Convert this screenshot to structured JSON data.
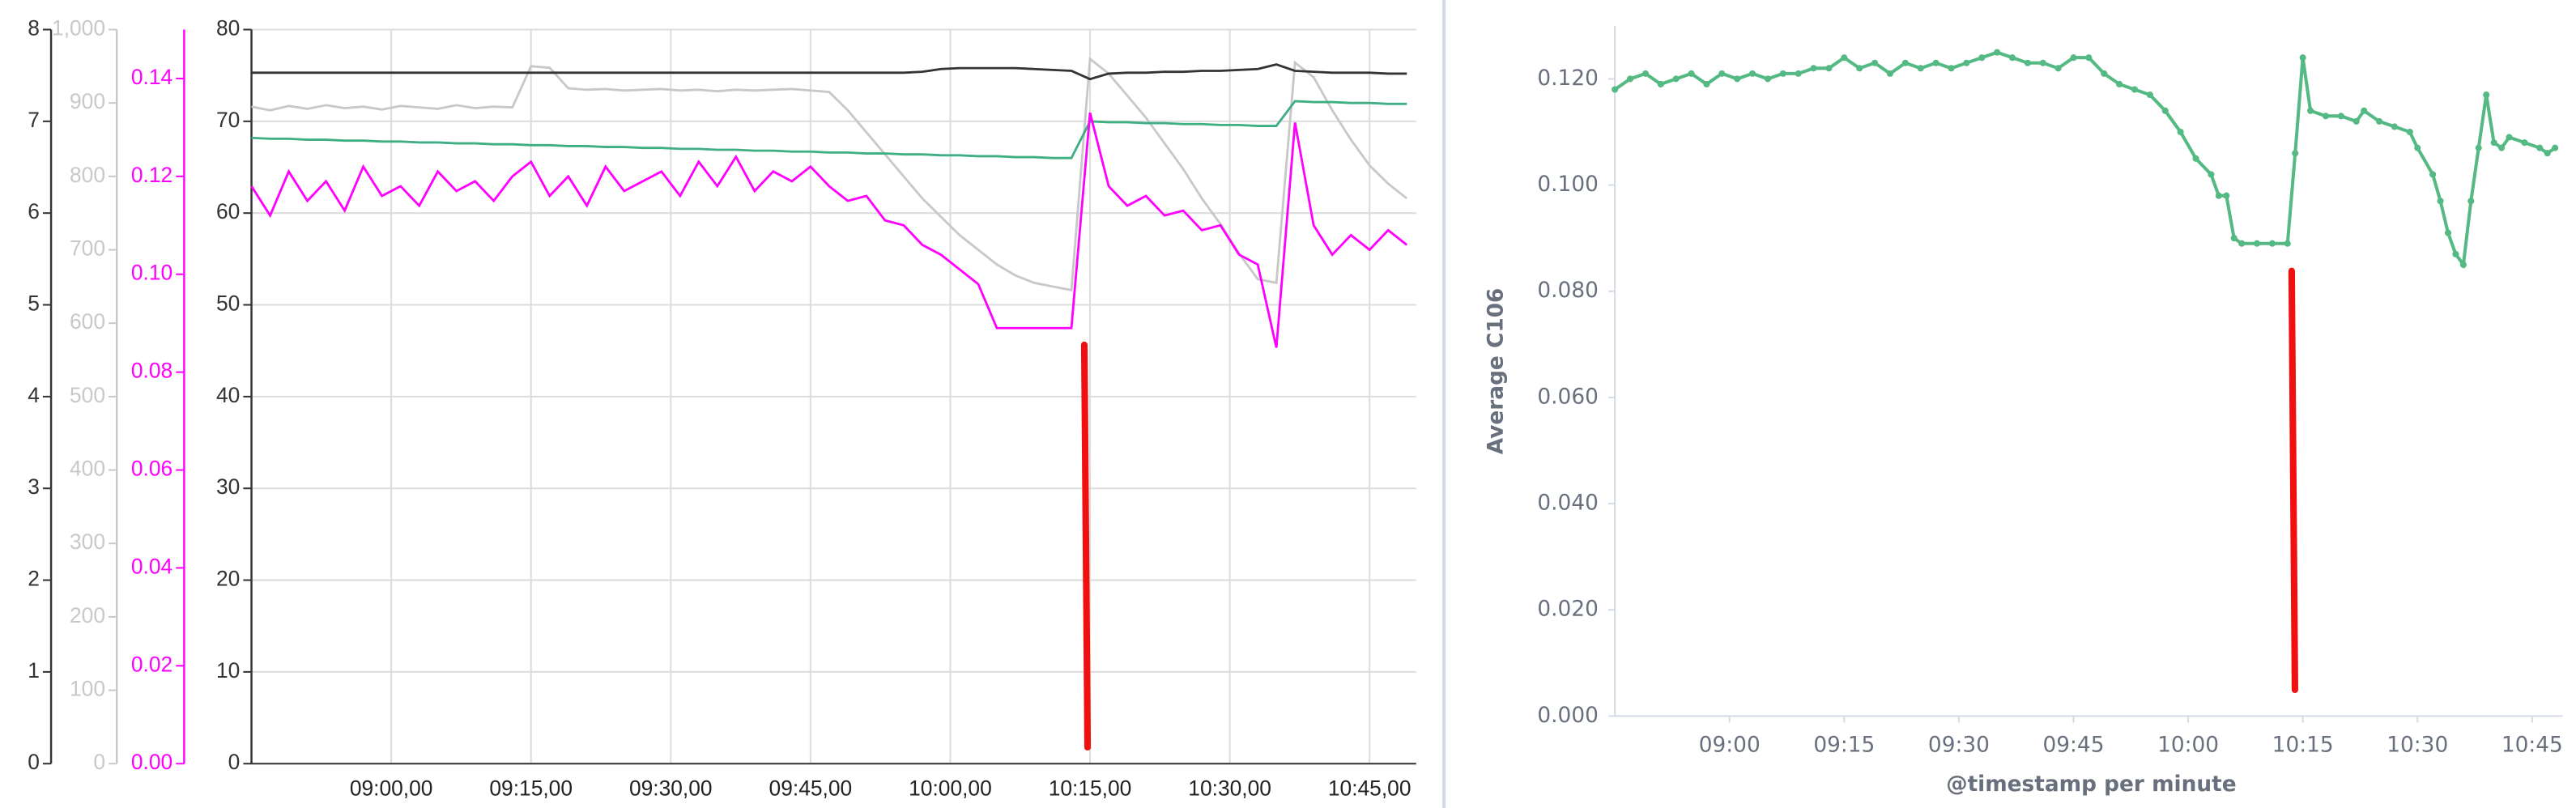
{
  "chart_data": [
    {
      "type": "line",
      "x": [
        "08:45",
        "08:47",
        "08:49",
        "08:51",
        "08:53",
        "08:55",
        "08:57",
        "08:59",
        "09:01",
        "09:03",
        "09:05",
        "09:07",
        "09:09",
        "09:11",
        "09:13",
        "09:15",
        "09:17",
        "09:19",
        "09:21",
        "09:23",
        "09:25",
        "09:27",
        "09:29",
        "09:31",
        "09:33",
        "09:35",
        "09:37",
        "09:39",
        "09:41",
        "09:43",
        "09:45",
        "09:47",
        "09:49",
        "09:51",
        "09:53",
        "09:55",
        "09:57",
        "09:59",
        "10:01",
        "10:03",
        "10:05",
        "10:07",
        "10:09",
        "10:11",
        "10:13",
        "10:15",
        "10:17",
        "10:19",
        "10:21",
        "10:23",
        "10:25",
        "10:27",
        "10:29",
        "10:31",
        "10:33",
        "10:35",
        "10:37",
        "10:39",
        "10:41",
        "10:43",
        "10:45",
        "10:47",
        "10:49"
      ],
      "xlim": [
        "08:45",
        "10:50"
      ],
      "xticks": [
        {
          "value": "09:00",
          "label": "09:00,00"
        },
        {
          "value": "09:15",
          "label": "09:15,00"
        },
        {
          "value": "09:30",
          "label": "09:30,00"
        },
        {
          "value": "09:45",
          "label": "09:45,00"
        },
        {
          "value": "10:00",
          "label": "10:00,00"
        },
        {
          "value": "10:15",
          "label": "10:15,00"
        },
        {
          "value": "10:30",
          "label": "10:30,00"
        },
        {
          "value": "10:45",
          "label": "10:45,00"
        }
      ],
      "grid": true,
      "yaxes": [
        {
          "ylim": [
            0,
            8
          ],
          "yticks": [
            0,
            1,
            2,
            3,
            4,
            5,
            6,
            7,
            8
          ],
          "color": "#333333"
        },
        {
          "ylim": [
            0,
            1000
          ],
          "yticks": [
            0,
            100,
            200,
            300,
            400,
            500,
            600,
            700,
            800,
            900,
            {
              "value": 1000,
              "label": "1,000"
            }
          ],
          "color": "#c8c8c8"
        },
        {
          "ylim": [
            0,
            0.15
          ],
          "yticks": [
            {
              "value": 0,
              "label": "0.00"
            },
            0.02,
            0.04,
            0.06,
            0.08,
            {
              "value": 0.1,
              "label": "0.10"
            },
            0.12,
            0.14
          ],
          "color": "#ff00ff"
        },
        {
          "ylim": [
            0,
            80
          ],
          "yticks": [
            0,
            10,
            20,
            30,
            40,
            50,
            60,
            70,
            80
          ],
          "color": "#333333",
          "grid": true
        }
      ],
      "series": [
        {
          "color": "#c8c8c8",
          "axis": 1,
          "values": [
            895,
            890,
            896,
            892,
            897,
            893,
            895,
            891,
            896,
            894,
            892,
            897,
            893,
            895,
            894,
            950,
            948,
            920,
            918,
            919,
            917,
            918,
            919,
            917,
            918,
            916,
            918,
            917,
            918,
            919,
            917,
            915,
            890,
            860,
            830,
            800,
            770,
            745,
            720,
            700,
            680,
            665,
            655,
            650,
            645,
            960,
            940,
            910,
            880,
            845,
            810,
            770,
            735,
            695,
            660,
            655,
            955,
            935,
            890,
            850,
            815,
            790,
            770
          ]
        },
        {
          "color": "#333333",
          "axis": 0,
          "values": [
            7.53,
            7.53,
            7.53,
            7.53,
            7.53,
            7.53,
            7.53,
            7.53,
            7.53,
            7.53,
            7.53,
            7.53,
            7.53,
            7.53,
            7.53,
            7.53,
            7.53,
            7.53,
            7.53,
            7.53,
            7.53,
            7.53,
            7.53,
            7.53,
            7.53,
            7.53,
            7.53,
            7.53,
            7.53,
            7.53,
            7.53,
            7.53,
            7.53,
            7.53,
            7.53,
            7.53,
            7.54,
            7.57,
            7.58,
            7.58,
            7.58,
            7.58,
            7.57,
            7.56,
            7.55,
            7.46,
            7.52,
            7.53,
            7.53,
            7.54,
            7.54,
            7.55,
            7.55,
            7.56,
            7.57,
            7.62,
            7.55,
            7.54,
            7.53,
            7.53,
            7.53,
            7.52,
            7.52
          ]
        },
        {
          "color": "#3fae82",
          "axis": 3,
          "values": [
            68.2,
            68.1,
            68.1,
            68.0,
            68.0,
            67.9,
            67.9,
            67.8,
            67.8,
            67.7,
            67.7,
            67.6,
            67.6,
            67.5,
            67.5,
            67.4,
            67.4,
            67.3,
            67.3,
            67.2,
            67.2,
            67.1,
            67.1,
            67.0,
            67.0,
            66.9,
            66.9,
            66.8,
            66.8,
            66.7,
            66.7,
            66.6,
            66.6,
            66.5,
            66.5,
            66.4,
            66.4,
            66.3,
            66.3,
            66.2,
            66.2,
            66.1,
            66.1,
            66.0,
            66.0,
            70.0,
            69.9,
            69.9,
            69.8,
            69.8,
            69.7,
            69.7,
            69.6,
            69.6,
            69.5,
            69.5,
            72.2,
            72.1,
            72.1,
            72.0,
            72.0,
            71.9,
            71.9
          ]
        },
        {
          "color": "#ff00ff",
          "axis": 2,
          "values": [
            0.118,
            0.112,
            0.121,
            0.115,
            0.119,
            0.113,
            0.122,
            0.116,
            0.118,
            0.114,
            0.121,
            0.117,
            0.119,
            0.115,
            0.12,
            0.123,
            0.116,
            0.12,
            0.114,
            0.122,
            0.117,
            0.119,
            0.121,
            0.116,
            0.123,
            0.118,
            0.124,
            0.117,
            0.121,
            0.119,
            0.122,
            0.118,
            0.115,
            0.116,
            0.111,
            0.11,
            0.106,
            0.104,
            0.101,
            0.098,
            0.089,
            0.089,
            0.089,
            0.089,
            0.089,
            0.133,
            0.118,
            0.114,
            0.116,
            0.112,
            0.113,
            0.109,
            0.11,
            0.104,
            0.102,
            0.085,
            0.131,
            0.11,
            0.104,
            0.108,
            0.105,
            0.109,
            0.106
          ]
        }
      ]
    },
    {
      "type": "line-points",
      "ylabel": "Average C106",
      "xlabel": "@timestamp per minute",
      "x": [
        "08:45",
        "08:47",
        "08:49",
        "08:51",
        "08:53",
        "08:55",
        "08:57",
        "08:59",
        "09:01",
        "09:03",
        "09:05",
        "09:07",
        "09:09",
        "09:11",
        "09:13",
        "09:15",
        "09:17",
        "09:19",
        "09:21",
        "09:23",
        "09:25",
        "09:27",
        "09:29",
        "09:31",
        "09:33",
        "09:35",
        "09:37",
        "09:39",
        "09:41",
        "09:43",
        "09:45",
        "09:47",
        "09:49",
        "09:51",
        "09:53",
        "09:55",
        "09:57",
        "09:59",
        "10:01",
        "10:03",
        "10:04",
        "10:05",
        "10:06",
        "10:07",
        "10:09",
        "10:11",
        "10:13",
        "10:14",
        "10:15",
        "10:16",
        "10:18",
        "10:20",
        "10:22",
        "10:23",
        "10:25",
        "10:27",
        "10:29",
        "10:30",
        "10:32",
        "10:33",
        "10:34",
        "10:35",
        "10:36",
        "10:37",
        "10:38",
        "10:39",
        "10:40",
        "10:41",
        "10:42",
        "10:44",
        "10:46",
        "10:47",
        "10:48"
      ],
      "values": [
        0.118,
        0.12,
        0.121,
        0.119,
        0.12,
        0.121,
        0.119,
        0.121,
        0.12,
        0.121,
        0.12,
        0.121,
        0.121,
        0.122,
        0.122,
        0.124,
        0.122,
        0.123,
        0.121,
        0.123,
        0.122,
        0.123,
        0.122,
        0.123,
        0.124,
        0.125,
        0.124,
        0.123,
        0.123,
        0.122,
        0.124,
        0.124,
        0.121,
        0.119,
        0.118,
        0.117,
        0.114,
        0.11,
        0.105,
        0.102,
        0.098,
        0.098,
        0.09,
        0.089,
        0.089,
        0.089,
        0.089,
        0.106,
        0.124,
        0.114,
        0.113,
        0.113,
        0.112,
        0.114,
        0.112,
        0.111,
        0.11,
        0.107,
        0.102,
        0.097,
        0.091,
        0.087,
        0.085,
        0.097,
        0.107,
        0.117,
        0.108,
        0.107,
        0.109,
        0.108,
        0.107,
        0.106,
        0.107
      ],
      "color": "#54b982",
      "xlim": [
        "08:45",
        "10:49"
      ],
      "xticks": [
        "09:00",
        "09:15",
        "09:30",
        "09:45",
        "10:00",
        "10:15",
        "10:30",
        "10:45"
      ],
      "ylim": [
        0,
        0.13
      ],
      "yticks": [
        {
          "value": 0,
          "label": "0.000"
        },
        {
          "value": 0.02,
          "label": "0.020"
        },
        {
          "value": 0.04,
          "label": "0.040"
        },
        {
          "value": 0.06,
          "label": "0.060"
        },
        {
          "value": 0.08,
          "label": "0.080"
        },
        {
          "value": 0.1,
          "label": "0.100"
        },
        {
          "value": 0.12,
          "label": "0.120"
        }
      ]
    }
  ]
}
